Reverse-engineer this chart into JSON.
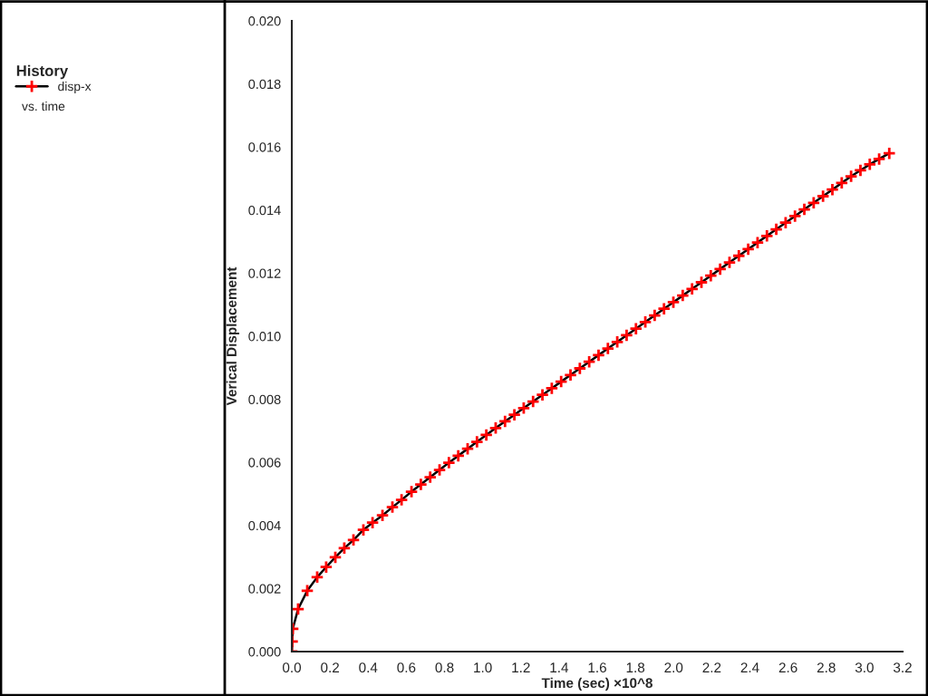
{
  "chart_data": {
    "type": "line",
    "xlabel": "Time (sec) ×10^8",
    "ylabel": "Verical Displacement",
    "legend_title": "History",
    "annotations": [
      "vs. time"
    ],
    "legend": "left",
    "marker": "cross",
    "line_style": "solid",
    "grid": false,
    "xlim": [
      0,
      3.2
    ],
    "ylim": [
      0,
      0.02
    ],
    "xticks": [
      {
        "value": 0,
        "label": "0.0"
      },
      {
        "value": 0.2,
        "label": "0.2"
      },
      {
        "value": 0.4,
        "label": "0.4"
      },
      {
        "value": 0.6,
        "label": "0.6"
      },
      {
        "value": 0.8,
        "label": "0.8"
      },
      {
        "value": 1,
        "label": "1.0"
      },
      {
        "value": 1.2,
        "label": "1.2"
      },
      {
        "value": 1.4,
        "label": "1.4"
      },
      {
        "value": 1.6,
        "label": "1.6"
      },
      {
        "value": 1.8,
        "label": "1.8"
      },
      {
        "value": 2,
        "label": "2.0"
      },
      {
        "value": 2.2,
        "label": "2.2"
      },
      {
        "value": 2.4,
        "label": "2.4"
      },
      {
        "value": 2.6,
        "label": "2.6"
      },
      {
        "value": 2.8,
        "label": "2.8"
      },
      {
        "value": 3,
        "label": "3.0"
      },
      {
        "value": 3.2,
        "label": "3.2"
      }
    ],
    "yticks": [
      {
        "value": 0,
        "label": "0.000"
      },
      {
        "value": 0.002,
        "label": "0.002"
      },
      {
        "value": 0.004,
        "label": "0.004"
      },
      {
        "value": 0.006,
        "label": "0.006"
      },
      {
        "value": 0.008,
        "label": "0.008"
      },
      {
        "value": 0.01,
        "label": "0.010"
      },
      {
        "value": 0.012,
        "label": "0.012"
      },
      {
        "value": 0.014,
        "label": "0.014"
      },
      {
        "value": 0.016,
        "label": "0.016"
      },
      {
        "value": 0.018,
        "label": "0.018"
      },
      {
        "value": 0.02,
        "label": "0.020"
      }
    ],
    "series": [
      {
        "name": "disp-x",
        "color": "#ff0000",
        "x": [
          0,
          0.002,
          0.005,
          0.033,
          0.081,
          0.133,
          0.18,
          0.228,
          0.275,
          0.323,
          0.375,
          0.423,
          0.475,
          0.527,
          0.575,
          0.627,
          0.676,
          0.725,
          0.774,
          0.823,
          0.872,
          0.921,
          0.97,
          1.019,
          1.068,
          1.117,
          1.166,
          1.215,
          1.264,
          1.313,
          1.362,
          1.411,
          1.46,
          1.509,
          1.558,
          1.607,
          1.656,
          1.705,
          1.754,
          1.803,
          1.852,
          1.901,
          1.95,
          1.999,
          2.048,
          2.097,
          2.146,
          2.195,
          2.244,
          2.293,
          2.342,
          2.391,
          2.44,
          2.489,
          2.538,
          2.587,
          2.636,
          2.685,
          2.734,
          2.783,
          2.832,
          2.881,
          2.93,
          2.979,
          3.028,
          3.077,
          3.13
        ],
        "values": [
          0,
          0.00032,
          0.00072,
          0.00135,
          0.00193,
          0.00236,
          0.00268,
          0.00299,
          0.00328,
          0.00354,
          0.00386,
          0.00409,
          0.00432,
          0.00458,
          0.00481,
          0.00507,
          0.0053,
          0.00553,
          0.00576,
          0.00599,
          0.00621,
          0.00643,
          0.00665,
          0.00687,
          0.00709,
          0.0073,
          0.00751,
          0.00772,
          0.00793,
          0.00814,
          0.00835,
          0.00856,
          0.00877,
          0.00898,
          0.00919,
          0.0094,
          0.00961,
          0.00982,
          0.01003,
          0.01024,
          0.01045,
          0.01066,
          0.01087,
          0.01108,
          0.01129,
          0.0115,
          0.01171,
          0.01192,
          0.01213,
          0.01234,
          0.01255,
          0.01276,
          0.01297,
          0.01318,
          0.01339,
          0.0136,
          0.01381,
          0.01402,
          0.01423,
          0.01444,
          0.01465,
          0.01486,
          0.01507,
          0.01526,
          0.01545,
          0.01562,
          0.0158
        ]
      }
    ]
  }
}
